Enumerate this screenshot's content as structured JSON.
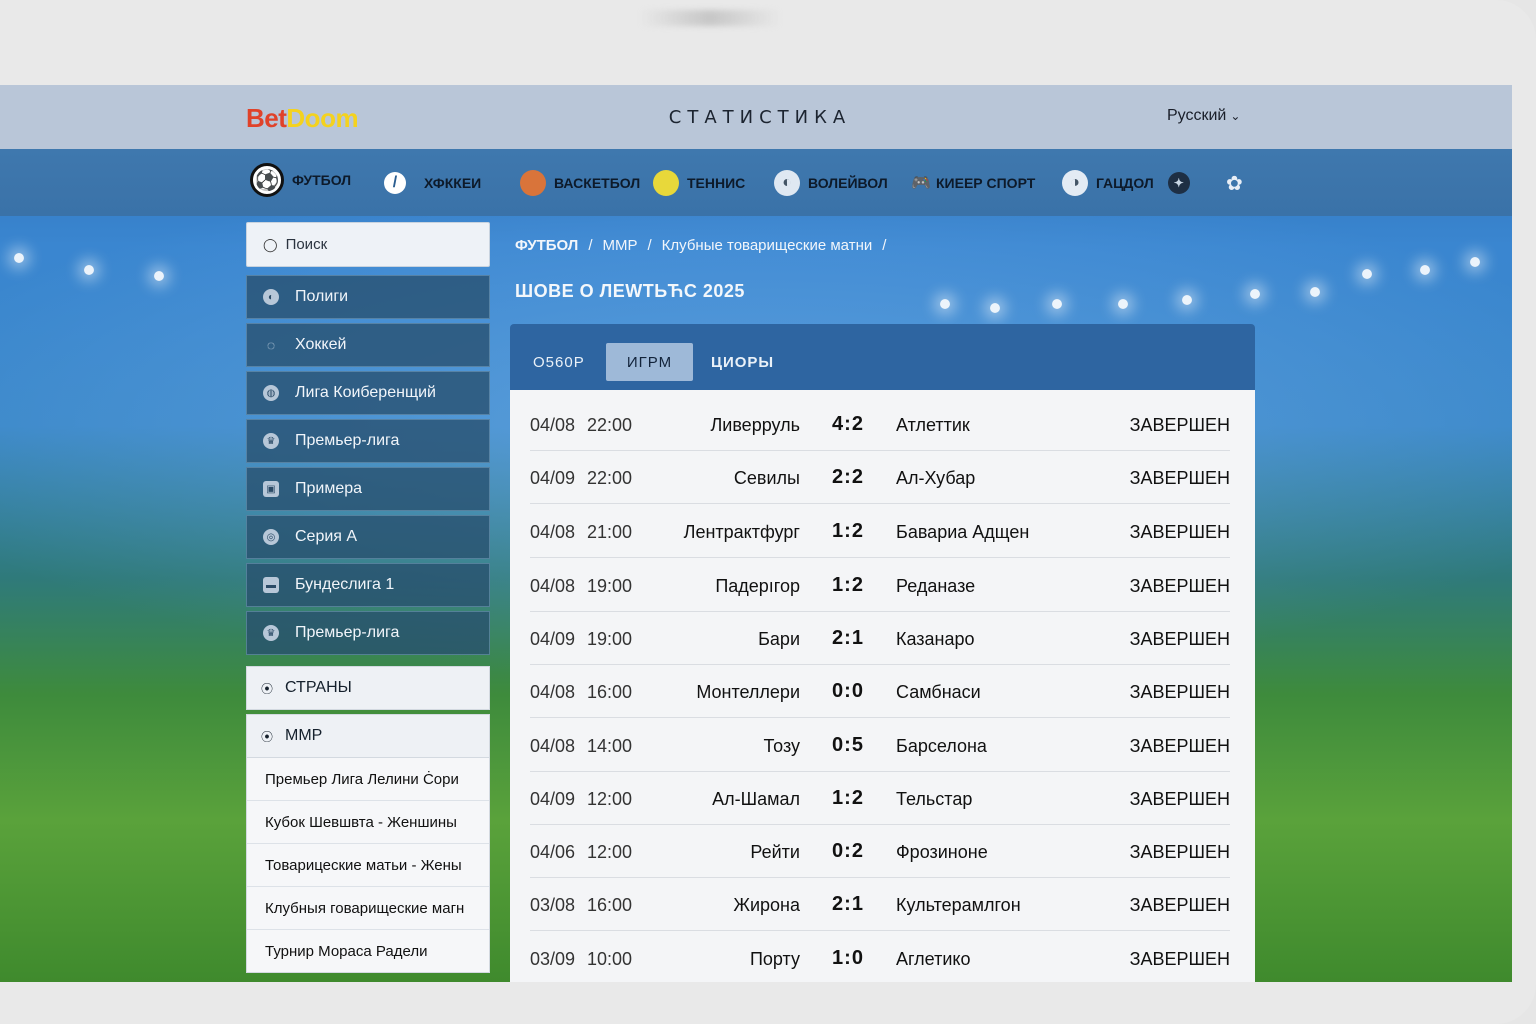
{
  "header": {
    "logo_part1": "Bet",
    "logo_part2": "Doom",
    "title": "СТАТИСТИКА",
    "language": "Русский"
  },
  "sports": [
    {
      "label": "ФУТБОЛ",
      "icon": "soccer-ball-icon"
    },
    {
      "label": "ХФККЕИ",
      "icon": "hockey-stick-icon"
    },
    {
      "label": "ВАСКЕТБОЛ",
      "icon": "basketball-icon"
    },
    {
      "label": "ТЕННИС",
      "icon": "tennis-ball-icon"
    },
    {
      "label": "ВОЛЕЙВОЛ",
      "icon": "volleyball-icon"
    },
    {
      "label": "КИЕЕР СПОРТ",
      "icon": "gamepad-icon"
    },
    {
      "label": "ГАЦДОЛ",
      "icon": "handball-icon"
    }
  ],
  "sidebar": {
    "search_placeholder": "Поиск",
    "leagues": [
      "Полиги",
      "Хоккей",
      "Лига Коиберенщий",
      "Премьер-лига",
      "Примера",
      "Серия А",
      "Бундеслига 1",
      "Премьер-лига"
    ],
    "countries_label": "СТРАНЫ",
    "mmp_label": "ММР",
    "sub_items": [
      "Премьер Лига Лелини Ċори",
      "Кубок Шевшвта - Женшины",
      "Товарицеские матьи - Жены",
      "Клубныя говарищеские магн",
      "Турнир Мораса Радели"
    ]
  },
  "breadcrumb": {
    "items": [
      "ФУТБОЛ",
      "ММР",
      "Клубные товарищеские матни"
    ],
    "separator": "/"
  },
  "season_title": "ШОВЕ О ЛЕWТЬЋС 2025",
  "tabs": [
    "О560Р",
    "ИГРМ",
    "ЦИОРЫ"
  ],
  "matches": [
    {
      "date": "04/08",
      "time": "22:00",
      "home": "Ливерруль",
      "score": "4:2",
      "away": "Атлеттик",
      "status": "ЗАВЕРШЕН"
    },
    {
      "date": "04/09",
      "time": "22:00",
      "home": "Севилы",
      "score": "2:2",
      "away": "Ал-Хубар",
      "status": "ЗАВЕРШЕН"
    },
    {
      "date": "04/08",
      "time": "21:00",
      "home": "Лентрактфург",
      "score": "1:2",
      "away": "Бавариа Адщен",
      "status": "ЗАВЕРШЕН"
    },
    {
      "date": "04/08",
      "time": "19:00",
      "home": "Падерıгор",
      "score": "1:2",
      "away": "Реданазе",
      "status": "ЗАВЕРШЕН"
    },
    {
      "date": "04/09",
      "time": "19:00",
      "home": "Бари",
      "score": "2:1",
      "away": "Казанаро",
      "status": "ЗАВЕРШЕН"
    },
    {
      "date": "04/08",
      "time": "16:00",
      "home": "Монтеллери",
      "score": "0:0",
      "away": "Самбнаси",
      "status": "ЗАВЕРШЕН"
    },
    {
      "date": "04/08",
      "time": "14:00",
      "home": "Тозу",
      "score": "0:5",
      "away": "Барселона",
      "status": "ЗАВЕРШЕН"
    },
    {
      "date": "04/09",
      "time": "12:00",
      "home": "Ал-Шамал",
      "score": "1:2",
      "away": "Тельстар",
      "status": "ЗАВЕРШЕН"
    },
    {
      "date": "04/06",
      "time": "12:00",
      "home": "Рейти",
      "score": "0:2",
      "away": "Фрозиноне",
      "status": "ЗАВЕРШЕН"
    },
    {
      "date": "03/08",
      "time": "16:00",
      "home": "Жирона",
      "score": "2:1",
      "away": "Культерамлгон",
      "status": "ЗАВЕРШЕН"
    },
    {
      "date": "03/09",
      "time": "10:00",
      "home": "Порту",
      "score": "1:0",
      "away": "Аглетико",
      "status": "ЗАВЕРШЕН"
    }
  ]
}
